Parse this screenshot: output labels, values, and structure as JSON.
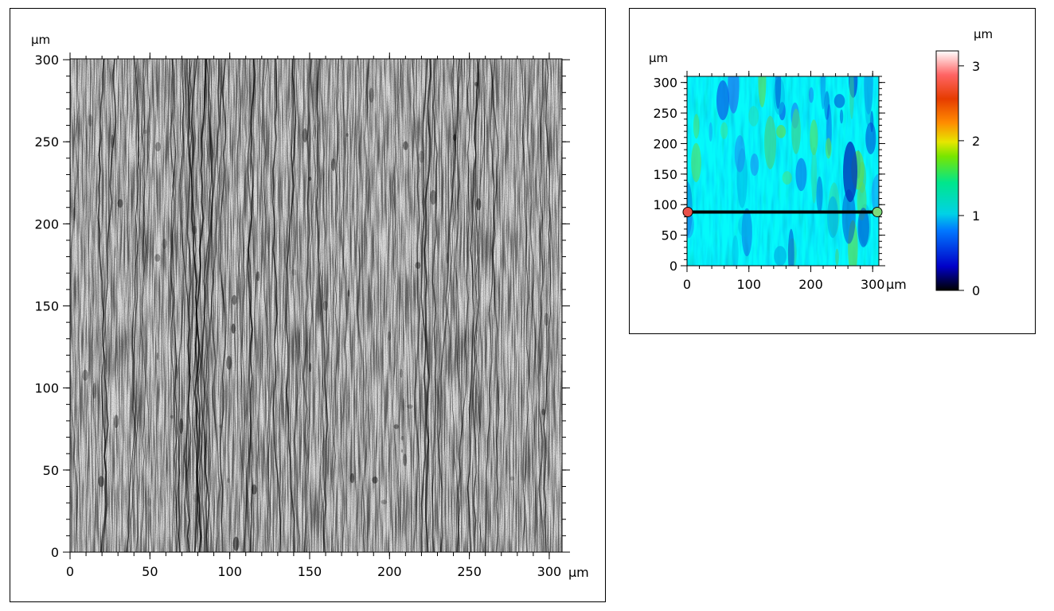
{
  "left_panel": {
    "unit_label": "µm",
    "x_ticks": [
      "0",
      "50",
      "100",
      "150",
      "200",
      "250",
      "300"
    ],
    "y_ticks": [
      "0",
      "50",
      "100",
      "150",
      "200",
      "250",
      "300"
    ],
    "x_unit": "µm"
  },
  "right_panel": {
    "unit_label": "µm",
    "x_ticks": [
      "0",
      "100",
      "200",
      "300"
    ],
    "y_ticks": [
      "0",
      "50",
      "100",
      "150",
      "200",
      "250",
      "300"
    ],
    "x_unit": "µm",
    "colorbar": {
      "unit_label": "µm",
      "ticks": [
        "0",
        "1",
        "2",
        "3"
      ],
      "min": 0,
      "max": 3.2,
      "colors": [
        "#000000",
        "#0000c8",
        "#0078ff",
        "#00d2e6",
        "#00e68c",
        "#78e600",
        "#e6e600",
        "#ff8c00",
        "#e63c00",
        "#ff6464",
        "#ffffff"
      ]
    },
    "profile_line": {
      "y": 88,
      "x_start": 0,
      "x_end": 310,
      "start_marker_color": "#e8504a",
      "end_marker_color": "#7ed87a"
    }
  },
  "colors": {
    "frame": "#000000",
    "background": "#ffffff",
    "line": "#000000"
  }
}
